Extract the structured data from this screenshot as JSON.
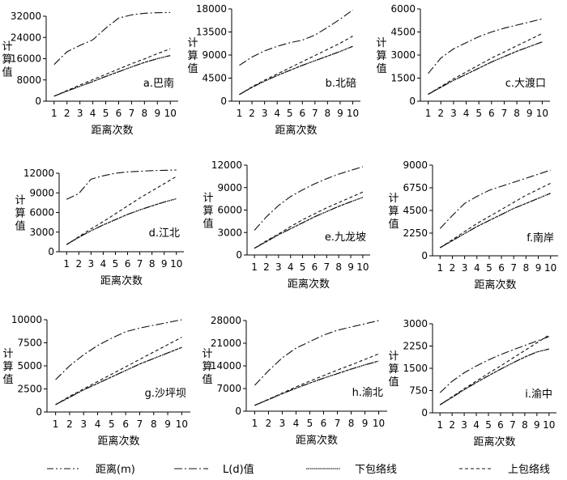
{
  "legend": [
    {
      "key": "distance",
      "label": "距离(m)",
      "dash": "8,3,2,3,2,3",
      "width": 1.1
    },
    {
      "key": "ld",
      "label": "L(d)值",
      "dash": "10,3,2,3",
      "width": 1.1
    },
    {
      "key": "lower",
      "label": "下包络线",
      "dash": "1.5,1",
      "width": 1.3
    },
    {
      "key": "upper",
      "label": "上包络线",
      "dash": "4,3",
      "width": 1.1
    }
  ],
  "chart_data": [
    {
      "type": "line",
      "panel_label": "a.巴南",
      "xlabel": "距离次数",
      "ylabel": "计算值",
      "x": [
        1,
        2,
        3,
        4,
        5,
        6,
        7,
        8,
        9,
        10
      ],
      "ylim": [
        0,
        32000
      ],
      "y_ticks": [
        0,
        8000,
        16000,
        24000,
        32000
      ],
      "y_tick_labels": [
        "0",
        "8000",
        "16000",
        "24000",
        "32000"
      ],
      "series": [
        {
          "key": "distance",
          "values": [
            1900,
            3800,
            5600,
            7400,
            9300,
            11100,
            12900,
            14600,
            16000,
            17200
          ]
        },
        {
          "key": "ld",
          "values": [
            13800,
            18600,
            21000,
            23100,
            27500,
            31300,
            32500,
            33100,
            33300,
            33400
          ]
        },
        {
          "key": "lower",
          "values": [
            1900,
            3800,
            5600,
            7400,
            9300,
            11100,
            12900,
            14600,
            16000,
            17200
          ]
        },
        {
          "key": "upper",
          "values": [
            1900,
            4000,
            6100,
            8100,
            10100,
            12100,
            14100,
            15900,
            17900,
            19700
          ]
        }
      ]
    },
    {
      "type": "line",
      "panel_label": "b.北碚",
      "xlabel": "距离次数",
      "ylabel": "计算值",
      "x": [
        1,
        2,
        3,
        4,
        5,
        6,
        7,
        8,
        9,
        10
      ],
      "ylim": [
        0,
        18000
      ],
      "y_ticks": [
        0,
        4500,
        9000,
        13500,
        18000
      ],
      "y_tick_labels": [
        "0",
        "4500",
        "9000",
        "13500",
        "18000"
      ],
      "series": [
        {
          "key": "distance",
          "values": [
            1300,
            2700,
            3900,
            5000,
            6000,
            7000,
            7900,
            8800,
            9700,
            10700
          ]
        },
        {
          "key": "ld",
          "values": [
            7000,
            8600,
            9800,
            10700,
            11400,
            11900,
            12900,
            14400,
            16000,
            17800
          ]
        },
        {
          "key": "lower",
          "values": [
            1300,
            2700,
            3900,
            5000,
            6000,
            7000,
            7900,
            8800,
            9700,
            10700
          ]
        },
        {
          "key": "upper",
          "values": [
            1300,
            2800,
            4100,
            5300,
            6500,
            7700,
            8900,
            10100,
            11300,
            12700
          ]
        }
      ]
    },
    {
      "type": "line",
      "panel_label": "c.大渡口",
      "xlabel": "",
      "ylabel": "计算值",
      "x": [
        1,
        2,
        3,
        4,
        5,
        6,
        7,
        8,
        9,
        10
      ],
      "ylim": [
        0,
        6000
      ],
      "y_ticks": [
        0,
        1500,
        3000,
        4500,
        6000
      ],
      "y_tick_labels": [
        "0",
        "1500",
        "3000",
        "4500",
        "6000"
      ],
      "series": [
        {
          "key": "distance",
          "values": [
            450,
            900,
            1350,
            1750,
            2150,
            2550,
            2900,
            3250,
            3550,
            3850
          ]
        },
        {
          "key": "ld",
          "values": [
            1800,
            2800,
            3400,
            3800,
            4200,
            4500,
            4750,
            4950,
            5150,
            5350
          ]
        },
        {
          "key": "lower",
          "values": [
            450,
            900,
            1350,
            1750,
            2150,
            2550,
            2900,
            3250,
            3550,
            3850
          ]
        },
        {
          "key": "upper",
          "values": [
            450,
            950,
            1450,
            1900,
            2350,
            2800,
            3200,
            3600,
            4000,
            4400
          ]
        }
      ]
    },
    {
      "type": "line",
      "panel_label": "d.江北",
      "xlabel": "距离次数",
      "ylabel": "计算值",
      "x": [
        1,
        2,
        3,
        4,
        5,
        6,
        7,
        8,
        9,
        10
      ],
      "ylim": [
        0,
        12000
      ],
      "y_ticks": [
        0,
        3000,
        6000,
        9000,
        12000
      ],
      "y_tick_labels": [
        "0",
        "3000",
        "6000",
        "9000",
        "12000"
      ],
      "series": [
        {
          "key": "distance",
          "values": [
            1100,
            2200,
            3200,
            4100,
            4900,
            5700,
            6400,
            7000,
            7600,
            8100
          ]
        },
        {
          "key": "ld",
          "values": [
            8000,
            8900,
            11100,
            11600,
            12000,
            12200,
            12300,
            12400,
            12450,
            12500
          ]
        },
        {
          "key": "lower",
          "values": [
            1100,
            2200,
            3200,
            4100,
            4900,
            5700,
            6400,
            7000,
            7600,
            8100
          ]
        },
        {
          "key": "upper",
          "values": [
            1100,
            2300,
            3500,
            4600,
            5800,
            7000,
            8200,
            9300,
            10400,
            11500
          ]
        }
      ]
    },
    {
      "type": "line",
      "panel_label": "e.九龙坡",
      "xlabel": "距离次数",
      "ylabel": "计算值",
      "x": [
        1,
        2,
        3,
        4,
        5,
        6,
        7,
        8,
        9,
        10
      ],
      "ylim": [
        0,
        12000
      ],
      "y_ticks": [
        0,
        3000,
        6000,
        9000,
        12000
      ],
      "y_tick_labels": [
        "0",
        "3000",
        "6000",
        "9000",
        "12000"
      ],
      "series": [
        {
          "key": "distance",
          "values": [
            900,
            1800,
            2700,
            3500,
            4300,
            5100,
            5800,
            6500,
            7100,
            7700
          ]
        },
        {
          "key": "ld",
          "values": [
            3300,
            5100,
            6600,
            7800,
            8700,
            9500,
            10200,
            10800,
            11300,
            11800
          ]
        },
        {
          "key": "lower",
          "values": [
            900,
            1800,
            2700,
            3500,
            4300,
            5100,
            5800,
            6500,
            7100,
            7700
          ]
        },
        {
          "key": "upper",
          "values": [
            900,
            1900,
            2800,
            3800,
            4700,
            5500,
            6300,
            7000,
            7700,
            8400
          ]
        }
      ]
    },
    {
      "type": "line",
      "panel_label": "f.南岸",
      "xlabel": "距离次数",
      "ylabel": "计算值",
      "x": [
        1,
        2,
        3,
        4,
        5,
        6,
        7,
        8,
        9,
        10
      ],
      "ylim": [
        0,
        9000
      ],
      "y_ticks": [
        0,
        2250,
        4500,
        6750,
        9000
      ],
      "y_tick_labels": [
        "0",
        "2250",
        "4500",
        "6750",
        "9000"
      ],
      "series": [
        {
          "key": "distance",
          "values": [
            800,
            1500,
            2200,
            2900,
            3500,
            4100,
            4700,
            5200,
            5700,
            6200
          ]
        },
        {
          "key": "ld",
          "values": [
            2700,
            4000,
            5200,
            5900,
            6500,
            6900,
            7300,
            7700,
            8100,
            8500
          ]
        },
        {
          "key": "lower",
          "values": [
            800,
            1500,
            2200,
            2900,
            3500,
            4100,
            4700,
            5200,
            5700,
            6200
          ]
        },
        {
          "key": "upper",
          "values": [
            800,
            1600,
            2400,
            3200,
            3900,
            4600,
            5300,
            6000,
            6600,
            7200
          ]
        }
      ]
    },
    {
      "type": "line",
      "panel_label": "g.沙坪坝",
      "xlabel": "距离次数",
      "ylabel": "计算值",
      "x": [
        1,
        2,
        3,
        4,
        5,
        6,
        7,
        8,
        9,
        10
      ],
      "ylim": [
        0,
        10000
      ],
      "y_ticks": [
        0,
        2500,
        5000,
        7500,
        10000
      ],
      "y_tick_labels": [
        "0",
        "2500",
        "5000",
        "7500",
        "10000"
      ],
      "series": [
        {
          "key": "distance",
          "values": [
            800,
            1600,
            2400,
            3100,
            3800,
            4500,
            5200,
            5800,
            6400,
            7000
          ]
        },
        {
          "key": "ld",
          "values": [
            3500,
            5000,
            6200,
            7200,
            8000,
            8700,
            9100,
            9400,
            9700,
            10000
          ]
        },
        {
          "key": "lower",
          "values": [
            800,
            1600,
            2400,
            3100,
            3800,
            4500,
            5200,
            5800,
            6400,
            7000
          ]
        },
        {
          "key": "upper",
          "values": [
            800,
            1700,
            2500,
            3300,
            4100,
            4900,
            5700,
            6500,
            7300,
            8100
          ]
        }
      ]
    },
    {
      "type": "line",
      "panel_label": "h.渝北",
      "xlabel": "距离次数",
      "ylabel": "计算值",
      "x": [
        1,
        2,
        3,
        4,
        5,
        6,
        7,
        8,
        9,
        10
      ],
      "ylim": [
        0,
        28000
      ],
      "y_ticks": [
        0,
        7000,
        14000,
        21000,
        28000
      ],
      "y_tick_labels": [
        "0",
        "7000",
        "14000",
        "21000",
        "28000"
      ],
      "series": [
        {
          "key": "distance",
          "values": [
            1800,
            3600,
            5400,
            7100,
            8700,
            10200,
            11600,
            13000,
            14300,
            15500
          ]
        },
        {
          "key": "ld",
          "values": [
            8000,
            12500,
            16500,
            19500,
            21500,
            23500,
            25000,
            26000,
            27000,
            28000
          ]
        },
        {
          "key": "lower",
          "values": [
            1800,
            3600,
            5400,
            7100,
            8700,
            10200,
            11600,
            13000,
            14300,
            15500
          ]
        },
        {
          "key": "upper",
          "values": [
            1800,
            3700,
            5600,
            7500,
            9300,
            11000,
            12700,
            14300,
            16000,
            17700
          ]
        }
      ]
    },
    {
      "type": "line",
      "panel_label": "i.渝中",
      "xlabel": "距离次数",
      "ylabel": "计算值",
      "x": [
        1,
        2,
        3,
        4,
        5,
        6,
        7,
        8,
        9,
        10
      ],
      "ylim": [
        0,
        3000
      ],
      "y_ticks": [
        0,
        750,
        1500,
        2250,
        3000
      ],
      "y_tick_labels": [
        "0",
        "750",
        "1500",
        "2250",
        "3000"
      ],
      "series": [
        {
          "key": "distance",
          "values": [
            270,
            520,
            780,
            1020,
            1250,
            1470,
            1680,
            1880,
            2050,
            2150
          ]
        },
        {
          "key": "ld",
          "values": [
            680,
            1060,
            1350,
            1580,
            1780,
            1960,
            2120,
            2270,
            2420,
            2570
          ]
        },
        {
          "key": "lower",
          "values": [
            270,
            520,
            780,
            1020,
            1250,
            1470,
            1680,
            1880,
            2050,
            2150
          ]
        },
        {
          "key": "upper",
          "values": [
            270,
            540,
            810,
            1070,
            1330,
            1580,
            1840,
            2100,
            2360,
            2620
          ]
        }
      ]
    }
  ]
}
